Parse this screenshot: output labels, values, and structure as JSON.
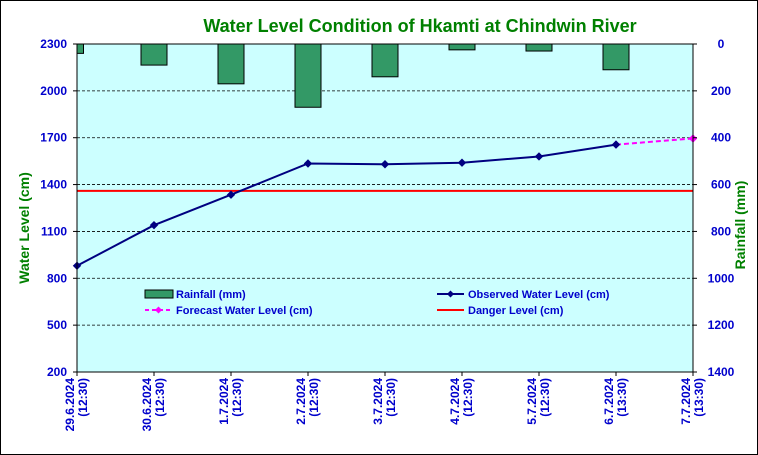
{
  "chart_data": {
    "type": "line",
    "title": "Water Level Condition of Hkamti at Chindwin River",
    "categories": [
      [
        "29.6.2024",
        "(12:30)"
      ],
      [
        "30.6.2024",
        "(12:30)"
      ],
      [
        "1.7.2024",
        "(12:30)"
      ],
      [
        "2.7.2024",
        "(12:30)"
      ],
      [
        "3.7.2024",
        "(12:30)"
      ],
      [
        "4.7.2024",
        "(12:30)"
      ],
      [
        "5.7.2024",
        "(12:30)"
      ],
      [
        "6.7.2024",
        "(13:30)"
      ],
      [
        "7.7.2024",
        "(13:30)"
      ]
    ],
    "y_left": {
      "label": "Water Level (cm)",
      "min": 200,
      "max": 2300,
      "ticks": [
        200,
        500,
        800,
        1100,
        1400,
        1700,
        2000,
        2300
      ]
    },
    "y_right": {
      "label": "Rainfall (mm)",
      "min": 0,
      "max": 1400,
      "reversed": true,
      "ticks": [
        0,
        200,
        400,
        600,
        800,
        1000,
        1200,
        1400
      ]
    },
    "grid": "horizontal-dashed",
    "legend_placement": "inside-lower",
    "series": [
      {
        "name": "Rainfall (mm)",
        "type": "bar",
        "axis": "right",
        "color": "#339966",
        "values": [
          40,
          90,
          170,
          270,
          140,
          25,
          30,
          110,
          null
        ]
      },
      {
        "name": "Observed Water Level (cm)",
        "type": "line",
        "axis": "left",
        "color": "#000080",
        "marker": "diamond",
        "values": [
          880,
          1140,
          1335,
          1535,
          1530,
          1540,
          1580,
          1656,
          null
        ]
      },
      {
        "name": "Forecast Water Level (cm)",
        "type": "line",
        "axis": "left",
        "color": "#ff00ff",
        "marker": "diamond",
        "dashed": true,
        "values": [
          null,
          null,
          null,
          null,
          null,
          null,
          null,
          1656,
          1695
        ]
      },
      {
        "name": "Danger Level (cm)",
        "type": "hline",
        "axis": "left",
        "color": "#ff0000",
        "value": 1360
      }
    ],
    "colors": {
      "title": "#008000",
      "axis_labels": "#008000",
      "tick_labels": "#0000cc",
      "legend_text": "#0000cc",
      "plot_background": "#ccffff"
    }
  }
}
